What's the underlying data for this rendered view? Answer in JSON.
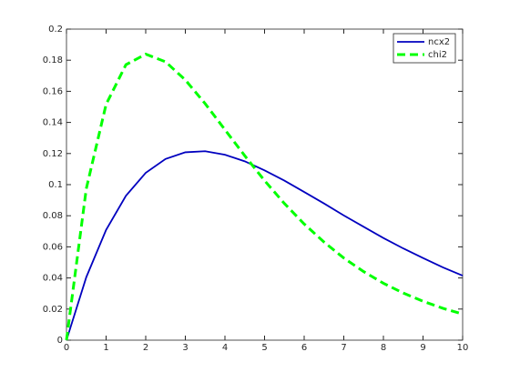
{
  "chart_data": {
    "type": "line",
    "x": [
      0,
      0.5,
      1,
      1.5,
      2,
      2.5,
      3,
      3.5,
      4,
      4.5,
      5,
      5.5,
      6,
      6.5,
      7,
      7.5,
      8,
      8.5,
      9,
      9.5,
      10
    ],
    "series": [
      {
        "name": "ncx2",
        "color": "#0000bf",
        "dash": "solid",
        "values": [
          0,
          0.0405,
          0.0709,
          0.0928,
          0.1076,
          0.1165,
          0.1208,
          0.1215,
          0.1192,
          0.115,
          0.1092,
          0.1026,
          0.0953,
          0.0879,
          0.0802,
          0.0729,
          0.0657,
          0.059,
          0.0528,
          0.0468,
          0.0415
        ]
      },
      {
        "name": "chi2",
        "color": "#00ff00",
        "dash": "dashed",
        "values": [
          0,
          0.0974,
          0.1516,
          0.1771,
          0.1839,
          0.179,
          0.1673,
          0.1521,
          0.1353,
          0.1186,
          0.1026,
          0.0879,
          0.0747,
          0.0631,
          0.0528,
          0.0441,
          0.0366,
          0.0303,
          0.025,
          0.0205,
          0.0168
        ]
      }
    ],
    "xlim": [
      0,
      10
    ],
    "xticks": [
      0,
      1,
      2,
      3,
      4,
      5,
      6,
      7,
      8,
      9,
      10
    ],
    "ylim": [
      0,
      0.2
    ],
    "yticks": [
      0,
      0.02,
      0.04,
      0.06,
      0.08,
      0.1,
      0.12,
      0.14,
      0.16,
      0.18,
      0.2
    ],
    "grid": false,
    "legend": "northeast"
  }
}
